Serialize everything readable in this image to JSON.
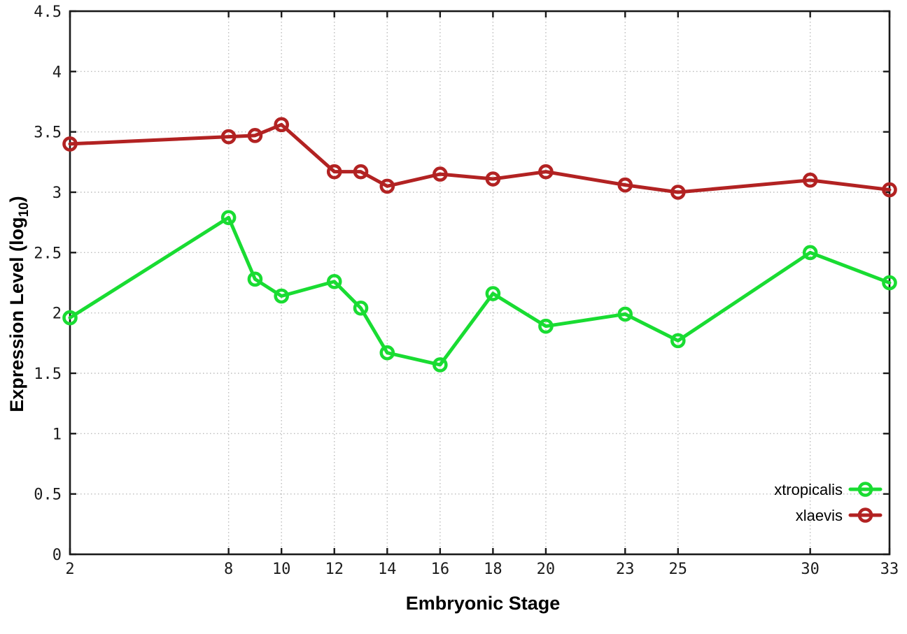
{
  "page": {
    "background_color": "#ffffff",
    "plot_border_color": "#1a1a1a",
    "grid_color": "#bcbcbc",
    "tick_label_color": "#1c1c1c"
  },
  "ylabel_rich": {
    "pre": "Expression Level (log",
    "sub": "10",
    "post": ")"
  },
  "chart_data": {
    "type": "line",
    "title": "",
    "xlabel": "Embryonic Stage",
    "ylabel": "Expression Level (log10)",
    "xlim": [
      2,
      33
    ],
    "ylim": [
      0,
      4.5
    ],
    "grid": true,
    "legend_position": "inside-bottom-right",
    "x_ticks": [
      2,
      8,
      10,
      12,
      14,
      16,
      18,
      20,
      23,
      25,
      30,
      33
    ],
    "x_tick_labels": [
      "2",
      "8",
      "10",
      "12",
      "14",
      "16",
      "18",
      "20",
      "23",
      "25",
      "30",
      "33"
    ],
    "y_ticks": [
      0,
      0.5,
      1,
      1.5,
      2,
      2.5,
      3,
      3.5,
      4,
      4.5
    ],
    "y_tick_labels": [
      "0",
      "0.5",
      "1",
      "1.5",
      "2",
      "2.5",
      "3",
      "3.5",
      "4",
      "4.5"
    ],
    "x": [
      2,
      8,
      9,
      10,
      12,
      13,
      14,
      16,
      18,
      20,
      23,
      25,
      30,
      33
    ],
    "series": [
      {
        "name": "xtropicalis",
        "color": "#19dc32",
        "marker": "open-circle",
        "values": [
          1.96,
          2.79,
          2.28,
          2.14,
          2.26,
          2.04,
          1.67,
          1.57,
          2.16,
          1.89,
          1.99,
          1.77,
          2.5,
          2.25
        ]
      },
      {
        "name": "xlaevis",
        "color": "#b22222",
        "marker": "open-circle",
        "values": [
          3.4,
          3.46,
          3.47,
          3.56,
          3.17,
          3.17,
          3.05,
          3.15,
          3.11,
          3.17,
          3.06,
          3.0,
          3.1,
          3.02
        ]
      }
    ]
  }
}
